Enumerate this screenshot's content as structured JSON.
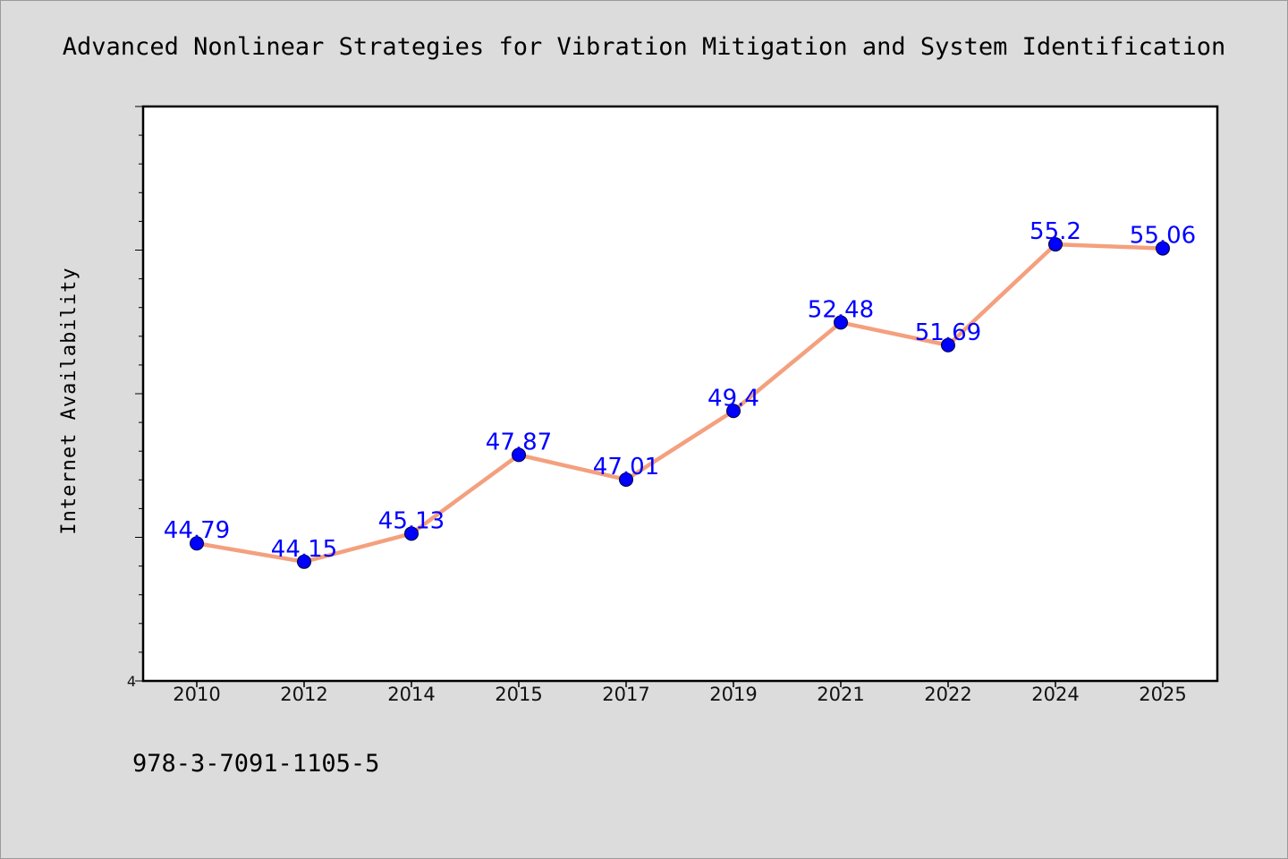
{
  "chart_data": {
    "type": "line",
    "title": "Advanced Nonlinear Strategies for Vibration Mitigation and System Identification",
    "xlabel": "",
    "ylabel": "Internet Availability",
    "categories": [
      "2010",
      "2012",
      "2014",
      "2015",
      "2017",
      "2019",
      "2021",
      "2022",
      "2024",
      "2025"
    ],
    "series": [
      {
        "values": [
          44.79,
          44.15,
          45.13,
          47.87,
          47.01,
          49.4,
          52.48,
          51.69,
          55.2,
          55.06
        ],
        "data_labels": [
          "44.79",
          "44.15",
          "45.13",
          "47.87",
          "47.01",
          "49.4",
          "52.48",
          "51.69",
          "55.2",
          "55.06"
        ],
        "line_color": "#f4a07e",
        "marker_color": "#0000ff"
      }
    ],
    "ylim": [
      40,
      60
    ],
    "y_tick_labels": [
      "4"
    ],
    "grid": false,
    "legend": "none"
  },
  "footer": {
    "text": "978-3-7091-1105-5"
  },
  "colors": {
    "background": "#dcdcdc",
    "plot_area": "#ffffff",
    "line": "#f4a07e",
    "marker": "#0000ff",
    "label": "#0000ff"
  }
}
